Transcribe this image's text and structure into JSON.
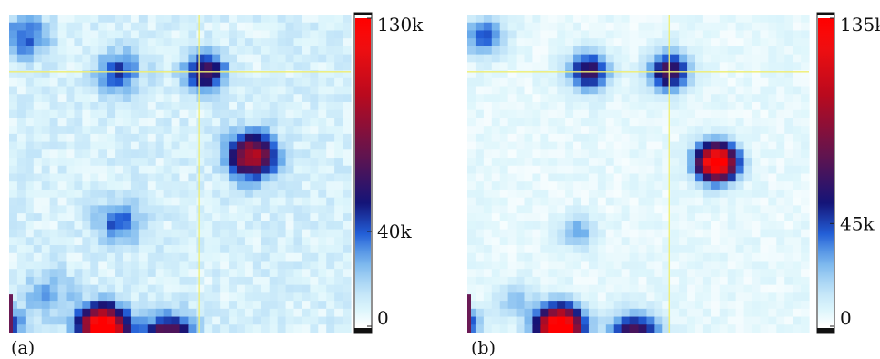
{
  "chart_data": [
    {
      "type": "heatmap",
      "panel_label": "(a)",
      "colorbar": {
        "min": 0,
        "max": 130000,
        "ticks": [
          {
            "value": 0,
            "label": "0"
          },
          {
            "value": 40000,
            "label": "40k"
          },
          {
            "value": 130000,
            "label": "130k"
          }
        ]
      },
      "background_level": 9000,
      "crosshair": {
        "x": 0.555,
        "y": 0.18,
        "color": "#f0ee70"
      },
      "spots": [
        {
          "x": 0.05,
          "y": 0.07,
          "amp": 32000,
          "sigma": 0.045
        },
        {
          "x": 0.32,
          "y": 0.18,
          "amp": 36000,
          "sigma": 0.045
        },
        {
          "x": 0.575,
          "y": 0.18,
          "amp": 58000,
          "sigma": 0.04
        },
        {
          "x": 0.71,
          "y": 0.445,
          "amp": 88000,
          "sigma": 0.048
        },
        {
          "x": 0.32,
          "y": 0.655,
          "amp": 32000,
          "sigma": 0.045
        },
        {
          "x": 0.115,
          "y": 0.88,
          "amp": 20000,
          "sigma": 0.05
        },
        {
          "x": 0.275,
          "y": 0.985,
          "amp": 150000,
          "sigma": 0.045
        },
        {
          "x": 0.465,
          "y": 1.02,
          "amp": 75000,
          "sigma": 0.05
        },
        {
          "x": 0.0,
          "y": 0.97,
          "amp": 40000,
          "sigma": 0.03
        }
      ]
    },
    {
      "type": "heatmap",
      "panel_label": "(b)",
      "colorbar": {
        "min": 0,
        "max": 135000,
        "ticks": [
          {
            "value": 0,
            "label": "0"
          },
          {
            "value": 45000,
            "label": "45k"
          },
          {
            "value": 135000,
            "label": "135k"
          }
        ]
      },
      "background_level": 5000,
      "crosshair": {
        "x": 0.59,
        "y": 0.18,
        "color": "#f0ee70"
      },
      "spots": [
        {
          "x": 0.05,
          "y": 0.07,
          "amp": 40000,
          "sigma": 0.04
        },
        {
          "x": 0.355,
          "y": 0.18,
          "amp": 62000,
          "sigma": 0.04
        },
        {
          "x": 0.59,
          "y": 0.18,
          "amp": 68000,
          "sigma": 0.04
        },
        {
          "x": 0.73,
          "y": 0.465,
          "amp": 150000,
          "sigma": 0.04
        },
        {
          "x": 0.325,
          "y": 0.685,
          "amp": 26000,
          "sigma": 0.035
        },
        {
          "x": 0.14,
          "y": 0.9,
          "amp": 18000,
          "sigma": 0.04
        },
        {
          "x": 0.27,
          "y": 0.985,
          "amp": 160000,
          "sigma": 0.045
        },
        {
          "x": 0.49,
          "y": 1.02,
          "amp": 80000,
          "sigma": 0.05
        },
        {
          "x": 0.0,
          "y": 0.97,
          "amp": 40000,
          "sigma": 0.03
        }
      ]
    }
  ]
}
